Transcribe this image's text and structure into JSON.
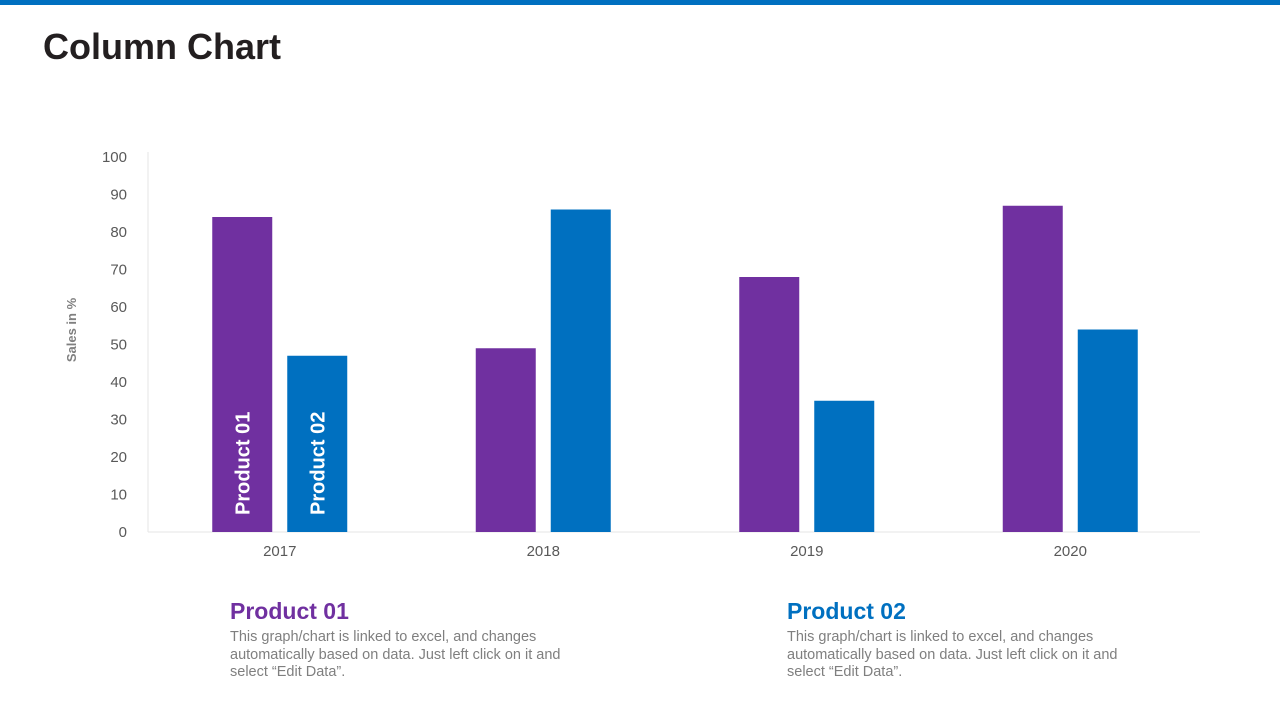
{
  "page": {
    "title": "Column Chart",
    "accent_color": "#0070c0"
  },
  "chart_data": {
    "type": "bar",
    "title": "",
    "xlabel": "",
    "ylabel": "Sales in %",
    "ylim": [
      0,
      100
    ],
    "yticks": [
      0,
      10,
      20,
      30,
      40,
      50,
      60,
      70,
      80,
      90,
      100
    ],
    "categories": [
      "2017",
      "2018",
      "2019",
      "2020"
    ],
    "grid": false,
    "legend": "inline-in-first-bars",
    "series": [
      {
        "name": "Product 01",
        "color": "#7030a0",
        "values": [
          84,
          49,
          68,
          87
        ]
      },
      {
        "name": "Product 02",
        "color": "#0070c0",
        "values": [
          47,
          86,
          35,
          54
        ]
      }
    ]
  },
  "descriptions": [
    {
      "title": "Product 01",
      "color": "#7030a0",
      "text": "This graph/chart is linked to excel, and changes automatically based on data. Just left click on it and select “Edit Data”."
    },
    {
      "title": "Product 02",
      "color": "#0070c0",
      "text": "This graph/chart is linked to excel, and changes automatically based on data. Just left click on it and select “Edit Data”."
    }
  ]
}
